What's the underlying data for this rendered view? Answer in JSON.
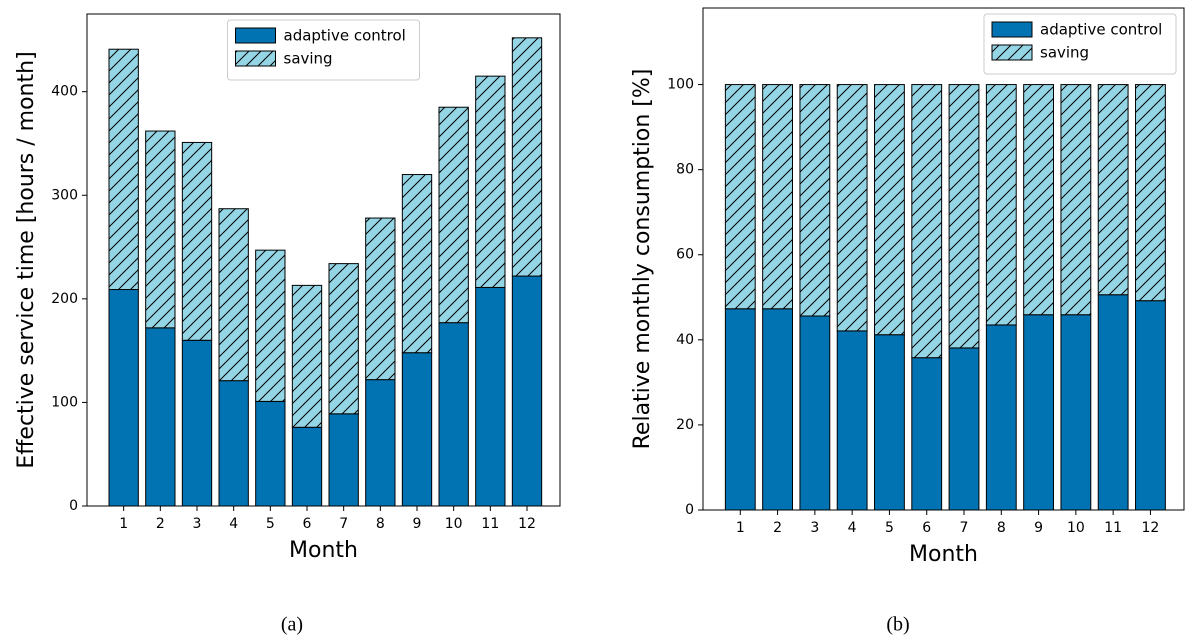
{
  "chart_data": [
    {
      "type": "stacked-bar",
      "caption": "(a)",
      "xlabel": "Month",
      "ylabel": "Effective service time [hours / month]",
      "categories": [
        "1",
        "2",
        "3",
        "4",
        "5",
        "6",
        "7",
        "8",
        "9",
        "10",
        "11",
        "12"
      ],
      "series": [
        {
          "name": "adaptive control",
          "color": "#0173b2",
          "values": [
            209,
            172,
            160,
            121,
            101,
            76,
            89,
            122,
            148,
            177,
            211,
            222
          ]
        },
        {
          "name": "saving",
          "color": "#94d6e6",
          "hatch": "/",
          "values": [
            232,
            190,
            191,
            166,
            146,
            137,
            145,
            156,
            172,
            208,
            204,
            230
          ]
        }
      ],
      "ylim": [
        0,
        475
      ],
      "yticks": [
        0,
        100,
        200,
        300,
        400
      ],
      "legend": "upper center"
    },
    {
      "type": "stacked-bar",
      "caption": "(b)",
      "xlabel": "Month",
      "ylabel": "Relative monthly consumption [%]",
      "categories": [
        "1",
        "2",
        "3",
        "4",
        "5",
        "6",
        "7",
        "8",
        "9",
        "10",
        "11",
        "12"
      ],
      "series": [
        {
          "name": "adaptive control",
          "color": "#0173b2",
          "values": [
            47.3,
            47.3,
            45.6,
            42.1,
            41.2,
            35.8,
            38.1,
            43.5,
            45.9,
            45.9,
            50.6,
            49.2
          ]
        },
        {
          "name": "saving",
          "color": "#94d6e6",
          "hatch": "/",
          "values": [
            52.7,
            52.7,
            54.4,
            57.9,
            58.8,
            64.2,
            61.9,
            56.5,
            54.1,
            54.1,
            49.4,
            50.8
          ]
        }
      ],
      "ylim": [
        0,
        118
      ],
      "yticks": [
        0,
        20,
        40,
        60,
        80,
        100
      ],
      "legend": "upper right"
    }
  ]
}
